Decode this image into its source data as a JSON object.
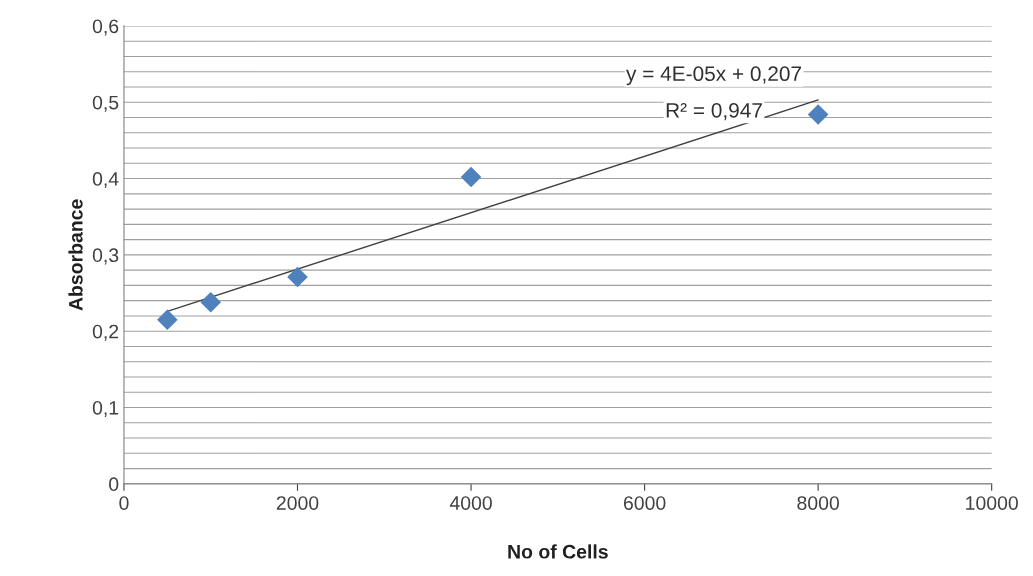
{
  "chart_data": {
    "type": "scatter",
    "xlabel": "No of Cells",
    "ylabel": "Absorbance",
    "series": [
      {
        "color": "#4f81bd",
        "marker": "diamond",
        "x": [
          500,
          1000,
          2000,
          4000,
          8000
        ],
        "values": [
          0.215,
          0.238,
          0.271,
          0.402,
          0.484
        ]
      },
      {
        "type": "line",
        "color": "#404040",
        "marker": "none",
        "line_style": "solid",
        "x": [
          500,
          8000
        ],
        "values": [
          0.226,
          0.503
        ]
      }
    ],
    "xlim": [
      0,
      10000
    ],
    "xticks": [
      0,
      2000,
      4000,
      6000,
      8000,
      10000
    ],
    "ylim": [
      0,
      0.6
    ],
    "yticks": [
      {
        "value": 0,
        "label": "0"
      },
      {
        "value": 0.02,
        "label": null
      },
      {
        "value": 0.04,
        "label": null
      },
      {
        "value": 0.06,
        "label": null
      },
      {
        "value": 0.08,
        "label": null
      },
      {
        "value": 0.1,
        "label": "0,1"
      },
      {
        "value": 0.12,
        "label": null
      },
      {
        "value": 0.14,
        "label": null
      },
      {
        "value": 0.16,
        "label": null
      },
      {
        "value": 0.18,
        "label": null
      },
      {
        "value": 0.2,
        "label": "0,2"
      },
      {
        "value": 0.22,
        "label": null
      },
      {
        "value": 0.24,
        "label": null
      },
      {
        "value": 0.26,
        "label": null
      },
      {
        "value": 0.28,
        "label": null
      },
      {
        "value": 0.3,
        "label": "0,3"
      },
      {
        "value": 0.32,
        "label": null
      },
      {
        "value": 0.34,
        "label": null
      },
      {
        "value": 0.36,
        "label": null
      },
      {
        "value": 0.38,
        "label": null
      },
      {
        "value": 0.4,
        "label": "0,4"
      },
      {
        "value": 0.42,
        "label": null
      },
      {
        "value": 0.44,
        "label": null
      },
      {
        "value": 0.46,
        "label": null
      },
      {
        "value": 0.48,
        "label": null
      },
      {
        "value": 0.5,
        "label": "0,5"
      },
      {
        "value": 0.52,
        "label": null
      },
      {
        "value": 0.54,
        "label": null
      },
      {
        "value": 0.56,
        "label": null
      },
      {
        "value": 0.58,
        "label": null
      },
      {
        "value": 0.6,
        "label": "0,6"
      }
    ],
    "grid": "y",
    "annotations": [
      "y = 4E-05x + 0,207",
      "R² = 0,947"
    ]
  }
}
